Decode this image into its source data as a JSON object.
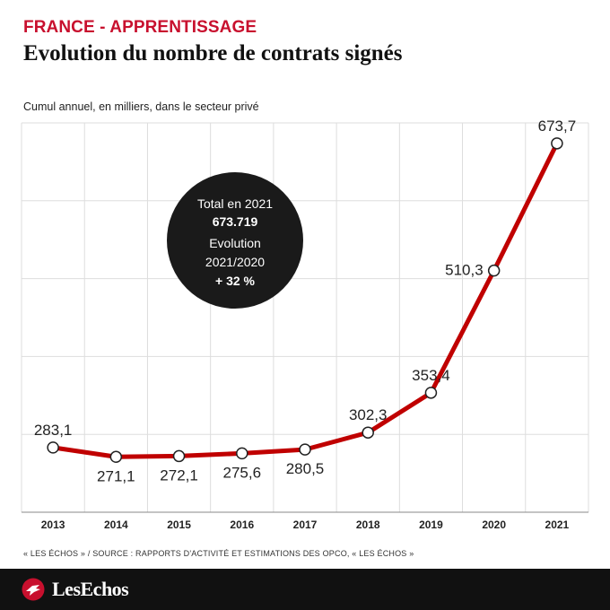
{
  "header": {
    "kicker": "FRANCE - APPRENTISSAGE",
    "title": "Evolution du nombre de contrats signés",
    "subtitle": "Cumul annuel, en milliers, dans le secteur privé"
  },
  "callout": {
    "line1": "Total en 2021",
    "line2": "673.719",
    "line3": "Evolution",
    "line4": "2021/2020",
    "line5": "+ 32 %"
  },
  "source": "« LES ÉCHOS » / SOURCE : RAPPORTS D'ACTIVITÉ ET ESTIMATIONS DES OPCO, « LES ÉCHOS »",
  "footer": {
    "brand": "LesEchos",
    "logo_icon": "les-echos-bird-logo"
  },
  "colors": {
    "accent": "#c8102e",
    "line": "#c00000",
    "footer_bg": "#111111",
    "callout_bg": "#1a1a1a"
  },
  "chart_data": {
    "type": "line",
    "x": [
      "2013",
      "2014",
      "2015",
      "2016",
      "2017",
      "2018",
      "2019",
      "2020",
      "2021"
    ],
    "values": [
      283.1,
      271.1,
      272.1,
      275.6,
      280.5,
      302.3,
      353.4,
      510.3,
      673.7
    ],
    "labels": [
      "283,1",
      "271,1",
      "272,1",
      "275,6",
      "280,5",
      "302,3",
      "353,4",
      "510,3",
      "673,7"
    ],
    "label_position": [
      "above",
      "below",
      "below",
      "below",
      "below",
      "above",
      "above",
      "left",
      "above"
    ],
    "ylim": [
      200,
      700
    ],
    "grid": true
  }
}
